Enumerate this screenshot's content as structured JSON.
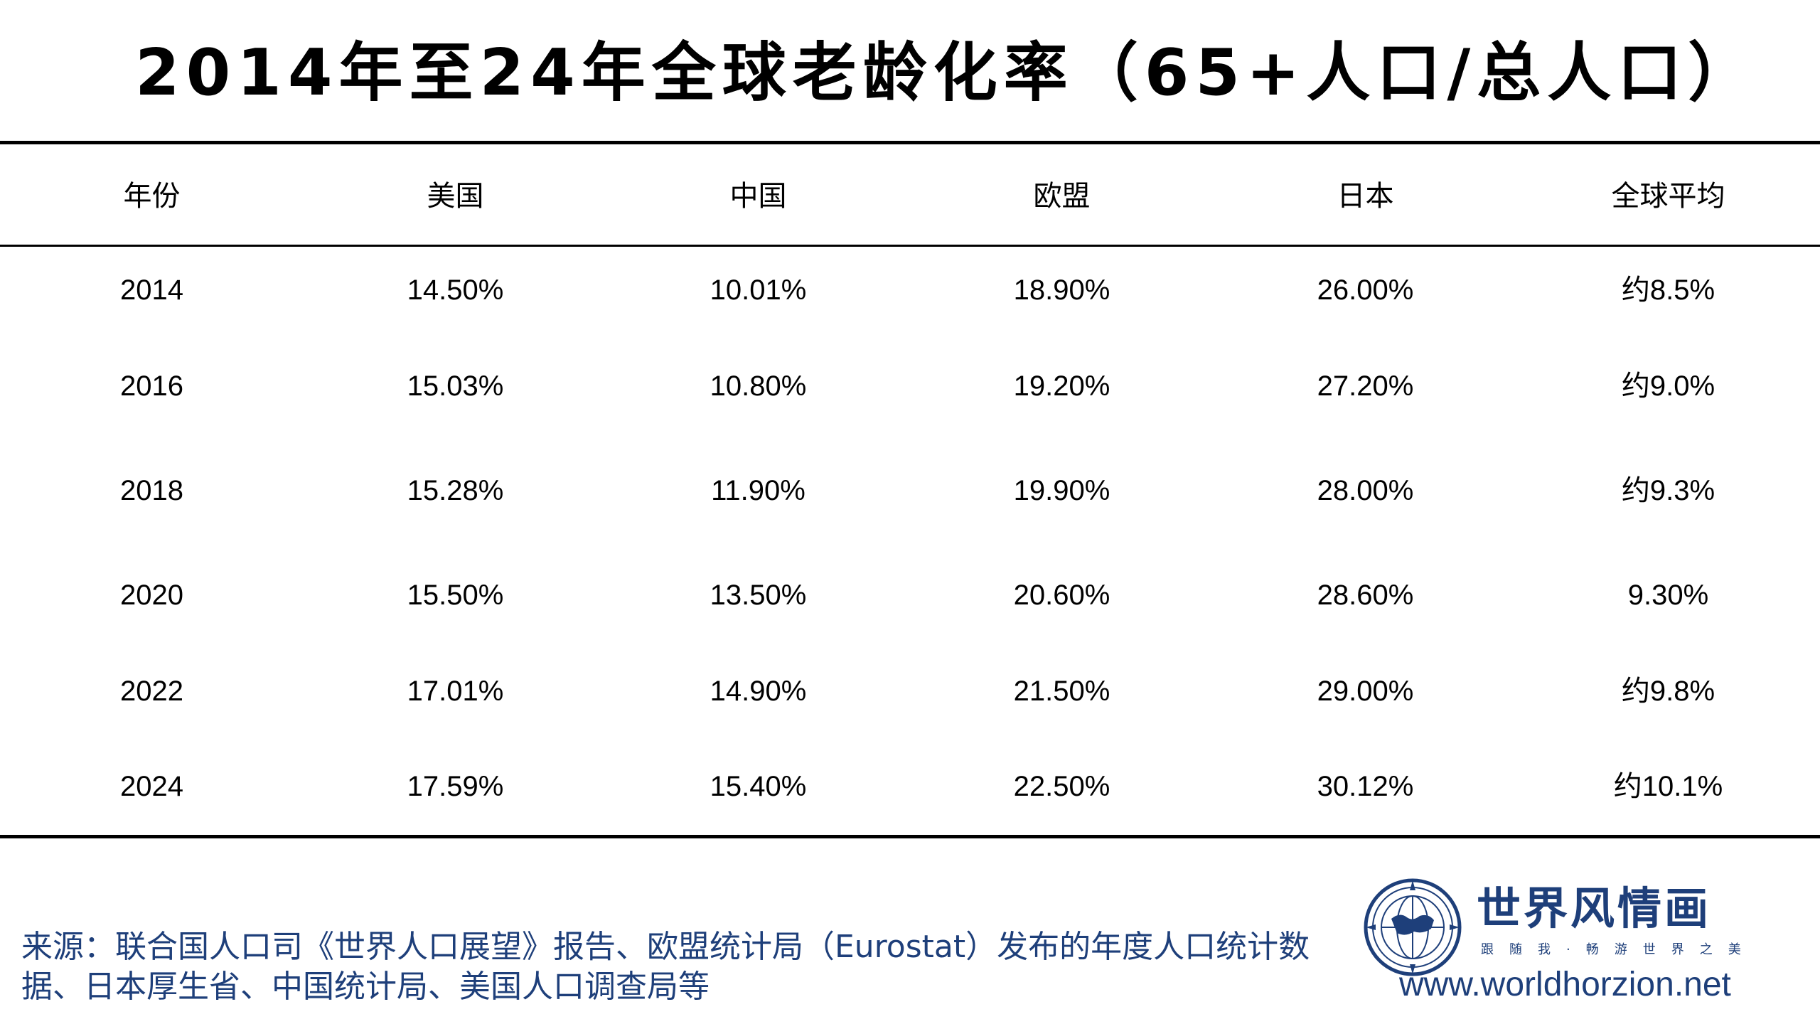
{
  "title": "2014年至24年全球老龄化率（65+人口/总人口）",
  "headers": [
    "年份",
    "美国",
    "中国",
    "欧盟",
    "日本",
    "全球平均"
  ],
  "rows": [
    [
      "2014",
      "14.50%",
      "10.01%",
      "18.90%",
      "26.00%",
      "约8.5%"
    ],
    [
      "2016",
      "15.03%",
      "10.80%",
      "19.20%",
      "27.20%",
      "约9.0%"
    ],
    [
      "2018",
      "15.28%",
      "11.90%",
      "19.90%",
      "28.00%",
      "约9.3%"
    ],
    [
      "2020",
      "15.50%",
      "13.50%",
      "20.60%",
      "28.60%",
      "9.30%"
    ],
    [
      "2022",
      "17.01%",
      "14.90%",
      "21.50%",
      "29.00%",
      "约9.8%"
    ],
    [
      "2024",
      "17.59%",
      "15.40%",
      "22.50%",
      "30.12%",
      "约10.1%"
    ]
  ],
  "source": "来源：联合国人口司《世界人口展望》报告、欧盟统计局（Eurostat）发布的年度人口统计数据、日本厚生省、中国统计局、美国人口调查局等",
  "logo": {
    "brand": "世界风情画",
    "slogan": "跟随我·畅游世界之美",
    "icon": "globe-compass-icon"
  },
  "website": "www.worldhorzion.net",
  "colors": {
    "text": "#000000",
    "accent": "#1e3f7a"
  }
}
